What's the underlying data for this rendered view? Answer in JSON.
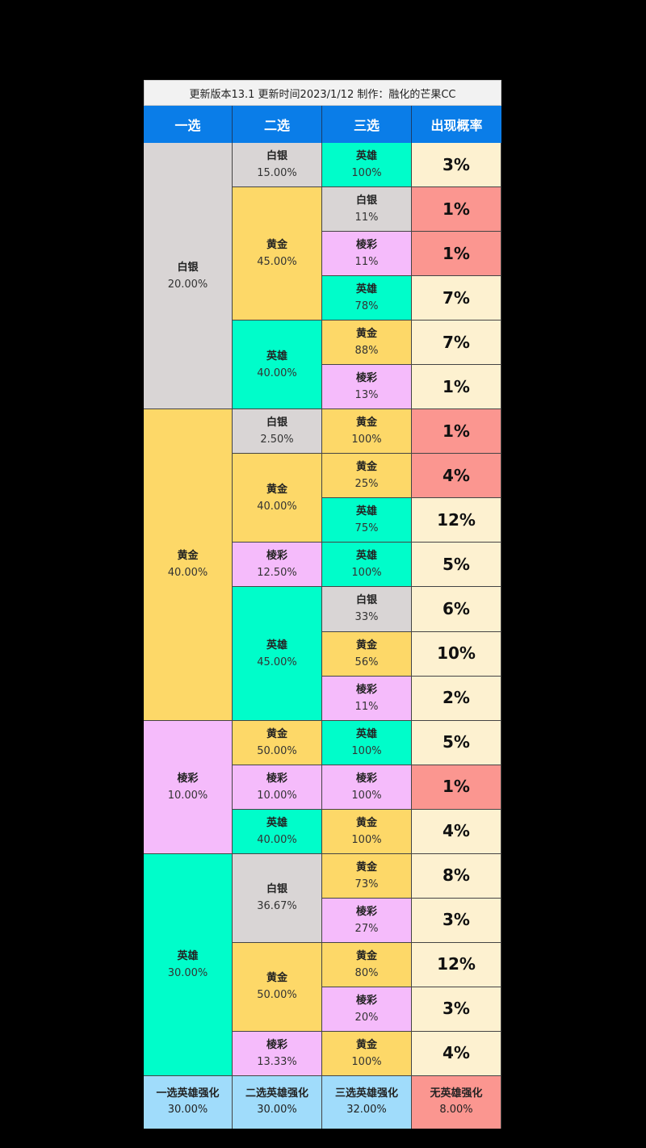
{
  "title": "更新版本13.1  更新时间2023/1/12  制作：融化的芒果CC",
  "colors": {
    "白银": "#d9d5d5",
    "黄金": "#fdd868",
    "棱彩": "#f5bbfb",
    "英雄": "#00fdca",
    "prob": "#fdf1d0",
    "prob_low": "#fb9690",
    "header": "#0a7de8",
    "footer": "#a0dcfb"
  },
  "headers": [
    "一选",
    "二选",
    "三选",
    "出现概率"
  ],
  "first": [
    {
      "name": "白银",
      "pct": "20.00%",
      "span": 6
    },
    {
      "name": "黄金",
      "pct": "40.00%",
      "span": 7
    },
    {
      "name": "棱彩",
      "pct": "10.00%",
      "span": 3
    },
    {
      "name": "英雄",
      "pct": "30.00%",
      "span": 5
    }
  ],
  "second": [
    {
      "name": "白银",
      "pct": "15.00%",
      "span": 1
    },
    {
      "name": "黄金",
      "pct": "45.00%",
      "span": 3
    },
    {
      "name": "英雄",
      "pct": "40.00%",
      "span": 2
    },
    {
      "name": "白银",
      "pct": "2.50%",
      "span": 1
    },
    {
      "name": "黄金",
      "pct": "40.00%",
      "span": 2
    },
    {
      "name": "棱彩",
      "pct": "12.50%",
      "span": 1
    },
    {
      "name": "英雄",
      "pct": "45.00%",
      "span": 3
    },
    {
      "name": "黄金",
      "pct": "50.00%",
      "span": 1
    },
    {
      "name": "棱彩",
      "pct": "10.00%",
      "span": 1
    },
    {
      "name": "英雄",
      "pct": "40.00%",
      "span": 1
    },
    {
      "name": "白银",
      "pct": "36.67%",
      "span": 2
    },
    {
      "name": "黄金",
      "pct": "50.00%",
      "span": 2
    },
    {
      "name": "棱彩",
      "pct": "13.33%",
      "span": 1
    }
  ],
  "rows": [
    {
      "third": "英雄",
      "pct": "100%",
      "prob": "3%",
      "low": false
    },
    {
      "third": "白银",
      "pct": "11%",
      "prob": "1%",
      "low": true
    },
    {
      "third": "棱彩",
      "pct": "11%",
      "prob": "1%",
      "low": true
    },
    {
      "third": "英雄",
      "pct": "78%",
      "prob": "7%",
      "low": false
    },
    {
      "third": "黄金",
      "pct": "88%",
      "prob": "7%",
      "low": false
    },
    {
      "third": "棱彩",
      "pct": "13%",
      "prob": "1%",
      "low": false
    },
    {
      "third": "黄金",
      "pct": "100%",
      "prob": "1%",
      "low": true
    },
    {
      "third": "黄金",
      "pct": "25%",
      "prob": "4%",
      "low": true
    },
    {
      "third": "英雄",
      "pct": "75%",
      "prob": "12%",
      "low": false
    },
    {
      "third": "英雄",
      "pct": "100%",
      "prob": "5%",
      "low": false
    },
    {
      "third": "白银",
      "pct": "33%",
      "prob": "6%",
      "low": false
    },
    {
      "third": "黄金",
      "pct": "56%",
      "prob": "10%",
      "low": false
    },
    {
      "third": "棱彩",
      "pct": "11%",
      "prob": "2%",
      "low": false
    },
    {
      "third": "英雄",
      "pct": "100%",
      "prob": "5%",
      "low": false
    },
    {
      "third": "棱彩",
      "pct": "100%",
      "prob": "1%",
      "low": true
    },
    {
      "third": "黄金",
      "pct": "100%",
      "prob": "4%",
      "low": false
    },
    {
      "third": "黄金",
      "pct": "73%",
      "prob": "8%",
      "low": false
    },
    {
      "third": "棱彩",
      "pct": "27%",
      "prob": "3%",
      "low": false
    },
    {
      "third": "黄金",
      "pct": "80%",
      "prob": "12%",
      "low": false
    },
    {
      "third": "棱彩",
      "pct": "20%",
      "prob": "3%",
      "low": false
    },
    {
      "third": "黄金",
      "pct": "100%",
      "prob": "4%",
      "low": false
    }
  ],
  "footer": [
    {
      "label": "一选英雄强化",
      "pct": "30.00%"
    },
    {
      "label": "二选英雄强化",
      "pct": "30.00%"
    },
    {
      "label": "三选英雄强化",
      "pct": "32.00%"
    },
    {
      "label": "无英雄强化",
      "pct": "8.00%"
    }
  ]
}
